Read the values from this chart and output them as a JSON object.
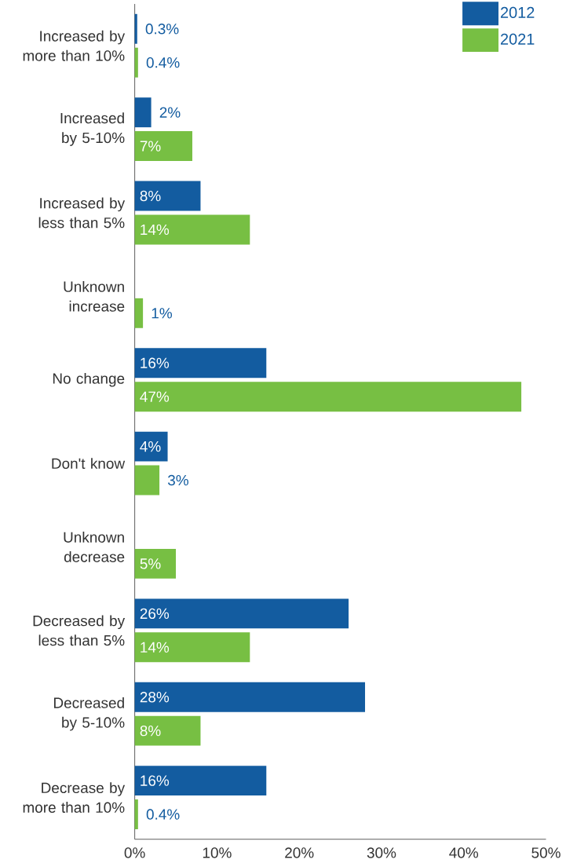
{
  "chart_data": {
    "type": "bar",
    "orientation": "horizontal",
    "categories": [
      "Increased by more than 10%",
      "Increased by 5-10%",
      "Increased by less than 5%",
      "Unknown increase",
      "No change",
      "Don't know",
      "Unknown decrease",
      "Decreased by less than 5%",
      "Decreased by 5-10%",
      "Decrease by more than 10%"
    ],
    "series": [
      {
        "name": "2012",
        "color": "#135ca0",
        "values": [
          0.3,
          2,
          8,
          null,
          16,
          4,
          null,
          26,
          28,
          16
        ],
        "value_labels": [
          "0.3%",
          "2%",
          "8%",
          null,
          "16%",
          "4%",
          null,
          "26%",
          "28%",
          "16%"
        ]
      },
      {
        "name": "2021",
        "color": "#77bf43",
        "values": [
          0.4,
          7,
          14,
          1,
          47,
          3,
          5,
          14,
          8,
          0.4
        ],
        "value_labels": [
          "0.4%",
          "7%",
          "14%",
          "1%",
          "47%",
          "3%",
          "5%",
          "14%",
          "8%",
          "0.4%"
        ]
      }
    ],
    "xlim": [
      0,
      50
    ],
    "xticks": [
      {
        "value": 0,
        "label": "0%"
      },
      {
        "value": 10,
        "label": "10%"
      },
      {
        "value": 20,
        "label": "20%"
      },
      {
        "value": 30,
        "label": "30%"
      },
      {
        "value": 40,
        "label": "40%"
      },
      {
        "value": 50,
        "label": "50%"
      }
    ],
    "legend": "top right",
    "grid": false
  }
}
